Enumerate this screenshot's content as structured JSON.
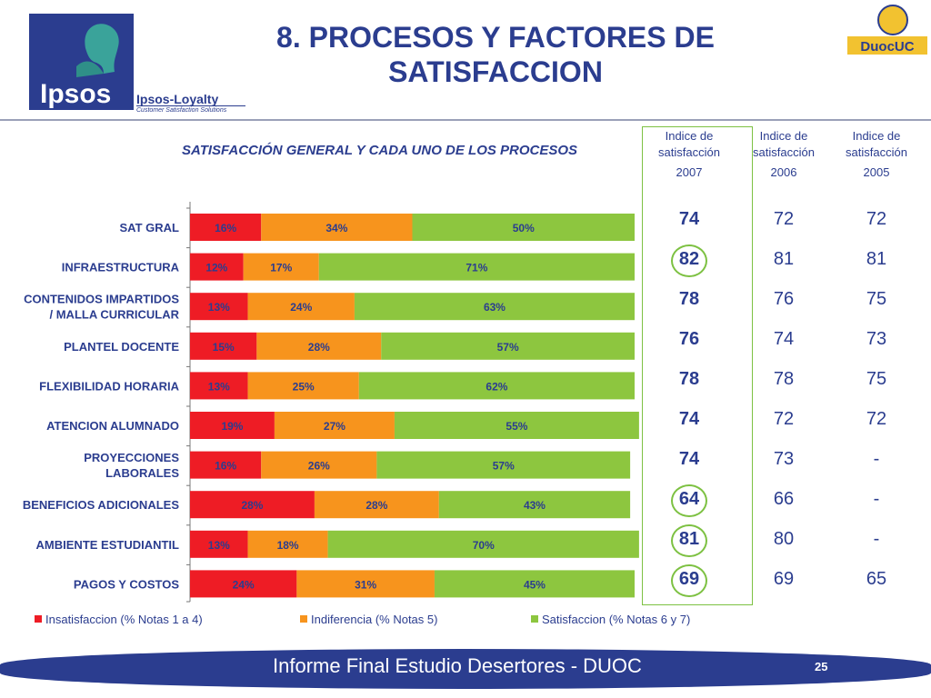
{
  "header": {
    "logo_text": "Ipsos",
    "brand_line": "Ipsos-Loyalty",
    "brand_tagline": "Customer Satisfaction Solutions",
    "duoc_logo": "DuocUC",
    "title_line1": "8. PROCESOS Y FACTORES DE",
    "title_line2": "SATISFACCION"
  },
  "table": {
    "col_labels": [
      {
        "label": "Indice de satisfacción",
        "year": "2007"
      },
      {
        "label": "Indice de satisfacción",
        "year": "2006"
      },
      {
        "label": "Indice de satisfacción",
        "year": "2005"
      }
    ],
    "rows": [
      {
        "v2007": "74",
        "v2006": "72",
        "v2005": "72",
        "circled": false
      },
      {
        "v2007": "82",
        "v2006": "81",
        "v2005": "81",
        "circled": true
      },
      {
        "v2007": "78",
        "v2006": "76",
        "v2005": "75",
        "circled": false
      },
      {
        "v2007": "76",
        "v2006": "74",
        "v2005": "73",
        "circled": false
      },
      {
        "v2007": "78",
        "v2006": "78",
        "v2005": "75",
        "circled": false
      },
      {
        "v2007": "74",
        "v2006": "72",
        "v2005": "72",
        "circled": false
      },
      {
        "v2007": "74",
        "v2006": "73",
        "v2005": "-",
        "circled": false
      },
      {
        "v2007": "64",
        "v2006": "66",
        "v2005": "-",
        "circled": true
      },
      {
        "v2007": "81",
        "v2006": "80",
        "v2005": "-",
        "circled": true
      },
      {
        "v2007": "69",
        "v2006": "69",
        "v2005": "65",
        "circled": true
      }
    ]
  },
  "chart_data": {
    "type": "bar",
    "orientation": "horizontal",
    "stacked": true,
    "percent_stacked": true,
    "title": "SATISFACCIÓN GENERAL Y CADA UNO DE LOS PROCESOS",
    "categories": [
      [
        "SAT GRAL"
      ],
      [
        "INFRAESTRUCTURA"
      ],
      [
        "CONTENIDOS IMPARTIDOS",
        "/ MALLA CURRICULAR"
      ],
      [
        "PLANTEL DOCENTE"
      ],
      [
        "FLEXIBILIDAD HORARIA"
      ],
      [
        "ATENCION ALUMNADO"
      ],
      [
        "PROYECCIONES",
        "LABORALES"
      ],
      [
        "BENEFICIOS ADICIONALES"
      ],
      [
        "AMBIENTE ESTUDIANTIL"
      ],
      [
        "PAGOS Y COSTOS"
      ]
    ],
    "series": [
      {
        "name": "Insatisfaccion (% Notas 1 a 4)",
        "color": "#ee1c25",
        "values": [
          16,
          12,
          13,
          15,
          13,
          19,
          16,
          28,
          13,
          24
        ]
      },
      {
        "name": "Indiferencia (% Notas 5)",
        "color": "#f7941d",
        "values": [
          34,
          17,
          24,
          28,
          25,
          27,
          26,
          28,
          18,
          31
        ]
      },
      {
        "name": "Satisfaccion (% Notas 6 y 7)",
        "color": "#8dc63f",
        "values": [
          50,
          71,
          63,
          57,
          62,
          55,
          57,
          43,
          70,
          45
        ]
      }
    ],
    "value_suffix": "%",
    "legend": "bottom"
  },
  "footer": {
    "text": "Informe Final Estudio Desertores - DUOC",
    "page": "25"
  }
}
